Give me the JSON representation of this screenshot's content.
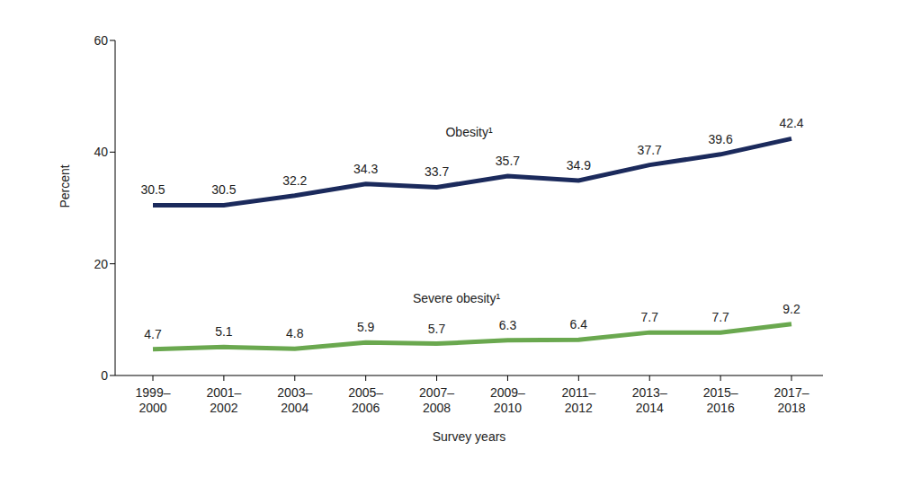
{
  "chart_data": {
    "type": "line",
    "x_label": "Survey years",
    "y_label": "Percent",
    "categories": [
      "1999–2000",
      "2001–2002",
      "2003–2004",
      "2005–2006",
      "2007–2008",
      "2009–2010",
      "2011–2012",
      "2013–2014",
      "2015–2016",
      "2017–2018"
    ],
    "series": [
      {
        "name": "Obesity¹",
        "color": "#1b2a5c",
        "values": [
          30.5,
          30.5,
          32.2,
          34.3,
          33.7,
          35.7,
          34.9,
          37.7,
          39.6,
          42.4
        ]
      },
      {
        "name": "Severe obesity¹",
        "color": "#6aa84f",
        "values": [
          4.7,
          5.1,
          4.8,
          5.9,
          5.7,
          6.3,
          6.4,
          7.7,
          7.7,
          9.2
        ]
      }
    ],
    "ylim": [
      0,
      60
    ],
    "yticks": [
      0,
      20,
      40,
      60
    ],
    "grid": false,
    "data_labels": true
  }
}
